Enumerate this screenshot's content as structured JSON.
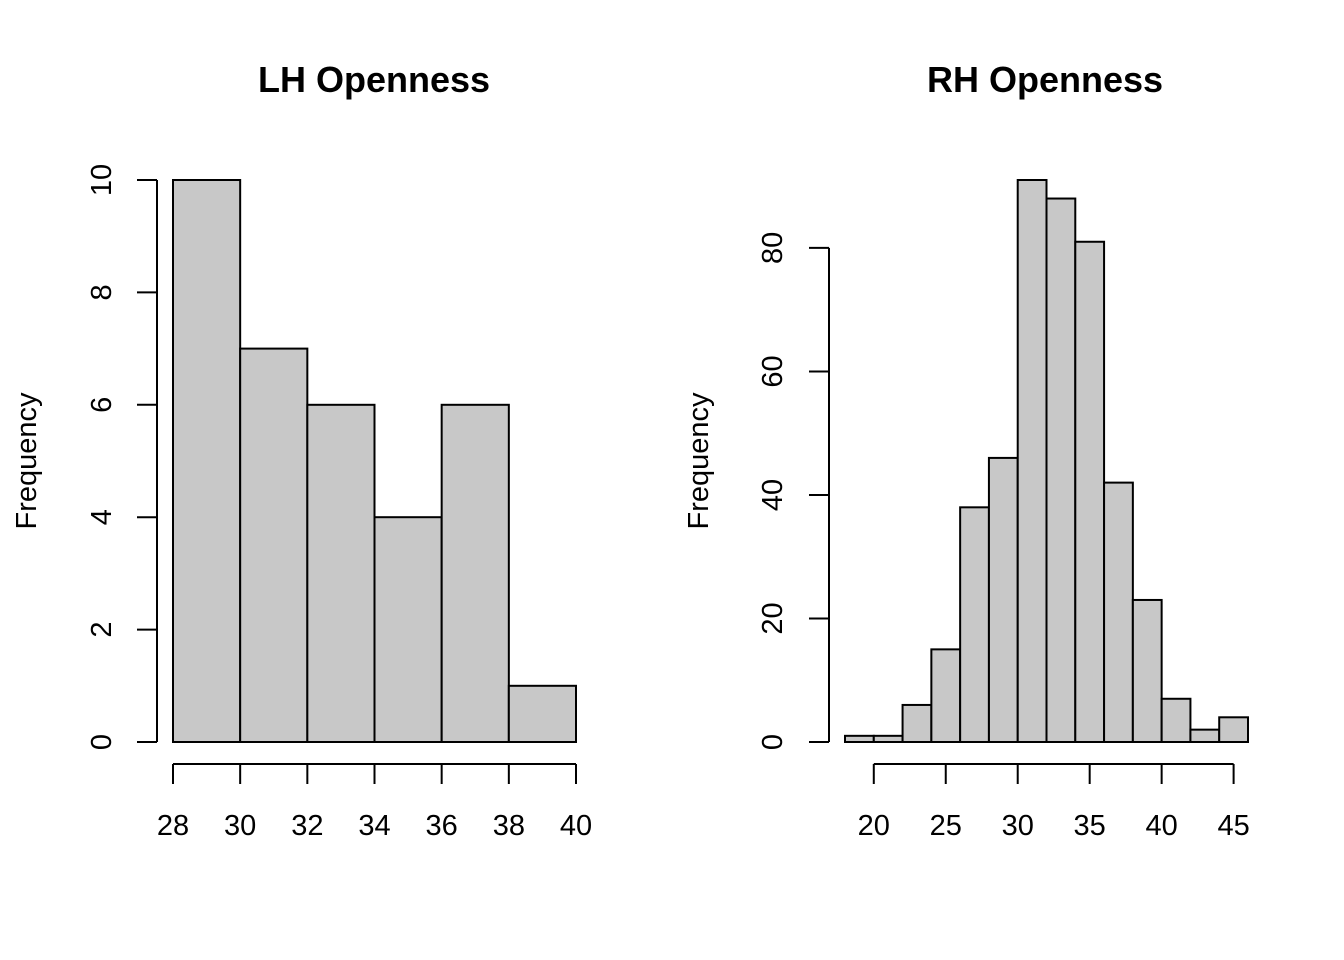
{
  "chart_data": [
    {
      "type": "bar",
      "title": "LH Openness",
      "xlabel": "",
      "ylabel": "Frequency",
      "bin_edges": [
        28,
        30,
        32,
        34,
        36,
        38,
        40
      ],
      "values": [
        10,
        7,
        6,
        4,
        6,
        1
      ],
      "xlim": [
        28,
        40
      ],
      "ylim": [
        0,
        10
      ],
      "x_ticks": [
        28,
        30,
        32,
        34,
        36,
        38,
        40
      ],
      "y_ticks": [
        0,
        2,
        4,
        6,
        8,
        10
      ],
      "grid": false,
      "bar_color": "#c8c8c8"
    },
    {
      "type": "bar",
      "title": "RH Openness",
      "xlabel": "",
      "ylabel": "Frequency",
      "bin_edges": [
        18,
        20,
        22,
        24,
        26,
        28,
        30,
        32,
        34,
        36,
        38,
        40,
        42,
        44,
        46
      ],
      "values": [
        1,
        1,
        6,
        15,
        38,
        46,
        91,
        88,
        81,
        42,
        23,
        7,
        2,
        4
      ],
      "xlim": [
        18,
        46
      ],
      "ylim": [
        0,
        91
      ],
      "x_ticks": [
        20,
        25,
        30,
        35,
        40,
        45
      ],
      "y_ticks": [
        0,
        20,
        40,
        60,
        80
      ],
      "grid": false,
      "bar_color": "#c8c8c8"
    }
  ]
}
